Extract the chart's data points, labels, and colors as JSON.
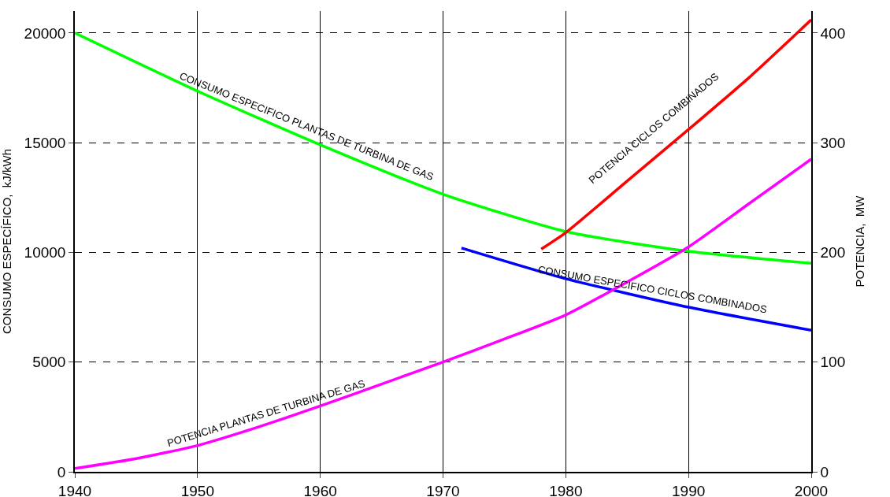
{
  "chart_data": {
    "type": "line",
    "ylabel": "CONSUMO ESPECÍFICO,  kJ/kWh",
    "y2label": "POTENCIA,  MW",
    "xlim": [
      1940,
      2000
    ],
    "xticks": [
      1940,
      1950,
      1960,
      1970,
      1980,
      1990,
      2000
    ],
    "ylim": [
      0,
      21000
    ],
    "yticks": [
      0,
      5000,
      10000,
      15000,
      20000
    ],
    "y2lim": [
      0,
      420
    ],
    "y2ticks": [
      0,
      100,
      200,
      300,
      400
    ],
    "grid": true,
    "legend": false,
    "marker": "none",
    "line_style": "solid",
    "series": [
      {
        "name": "CONSUMO ESPECIFICO PLANTAS DE TURBINA DE GAS",
        "color": "#00ff00",
        "x": [
          1940,
          1950,
          1960,
          1970,
          1980,
          1990,
          2000
        ],
        "values": [
          20000,
          17350,
          14900,
          12650,
          10950,
          10050,
          9500
        ]
      },
      {
        "name": "CONSUMO ESPECIFICO CICLOS COMBINADOS",
        "color": "#0000ff",
        "x": [
          1971.5,
          1980,
          1990,
          2000
        ],
        "values": [
          10200,
          8800,
          7500,
          6450
        ]
      },
      {
        "name": "POTENCIA CICLOS COMBINADOS",
        "color": "#ff0000",
        "axis": "y2",
        "x": [
          1978,
          1980,
          1985,
          1990,
          1995,
          2000
        ],
        "values": [
          203,
          218,
          265,
          312,
          360,
          412
        ]
      },
      {
        "name": "POTENCIA PLANTAS DE TURBINA DE GAS",
        "color": "#ff00ff",
        "axis": "y2",
        "x": [
          1940,
          1945,
          1950,
          1955,
          1960,
          1965,
          1970,
          1975,
          1980,
          1985,
          1990,
          1995,
          2000
        ],
        "values": [
          3,
          12,
          24,
          41,
          60,
          80,
          100,
          121,
          143,
          173,
          205,
          245,
          285
        ]
      }
    ]
  }
}
